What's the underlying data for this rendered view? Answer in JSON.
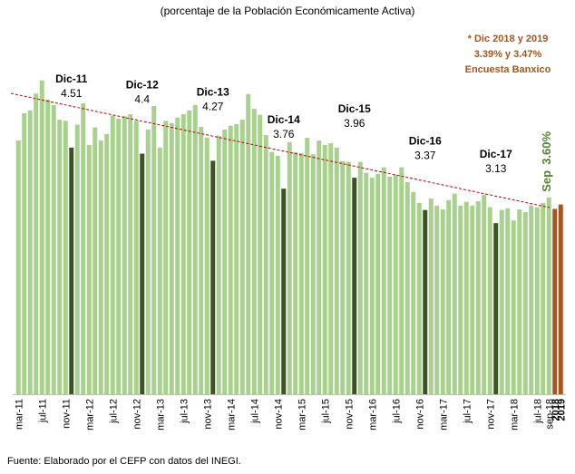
{
  "chart_data": {
    "type": "bar",
    "title": "(porcentaje de la Población Económicamente Activa)",
    "source": "Fuente: Elaborado por el CEFP con datos del INEGI.",
    "annotation": [
      "* Dic 2018 y 2019",
      "3.39% y 3.47%",
      "Encuesta Banxico"
    ],
    "categories": [
      "mar-11",
      null,
      null,
      null,
      "jul-11",
      null,
      null,
      null,
      "nov-11",
      null,
      null,
      null,
      "mar-12",
      null,
      null,
      null,
      "jul-12",
      null,
      null,
      null,
      "nov-12",
      null,
      null,
      null,
      "mar-13",
      null,
      null,
      null,
      "jul-13",
      null,
      null,
      null,
      "nov-13",
      null,
      null,
      null,
      "mar-14",
      null,
      null,
      null,
      "jul-14",
      null,
      null,
      null,
      "nov-14",
      null,
      null,
      null,
      "mar-15",
      null,
      null,
      null,
      "jul-15",
      null,
      null,
      null,
      "nov-15",
      null,
      null,
      null,
      "mar-16",
      null,
      null,
      null,
      "jul-16",
      null,
      null,
      null,
      "nov-16",
      null,
      null,
      null,
      "mar-17",
      null,
      null,
      null,
      "jul-17",
      null,
      null,
      null,
      "nov-17",
      null,
      null,
      null,
      "mar-18",
      null,
      null,
      null,
      "jul-18",
      null,
      "sep-18",
      "2018",
      "2019"
    ],
    "values": [
      4.64,
      5.14,
      5.19,
      5.5,
      5.74,
      5.39,
      5.29,
      5.02,
      5.0,
      4.51,
      4.93,
      5.32,
      4.56,
      4.88,
      4.64,
      4.76,
      5.09,
      5.04,
      5.09,
      5.12,
      5.0,
      4.4,
      4.84,
      5.27,
      4.51,
      5.0,
      4.96,
      5.06,
      5.12,
      5.19,
      5.29,
      4.89,
      4.69,
      4.27,
      4.73,
      4.84,
      4.91,
      4.94,
      5.02,
      5.49,
      5.22,
      5.11,
      4.74,
      4.43,
      4.36,
      3.76,
      4.61,
      4.43,
      4.41,
      4.69,
      4.39,
      4.64,
      4.56,
      4.59,
      4.51,
      4.26,
      4.25,
      3.96,
      4.25,
      4.05,
      3.96,
      4.03,
      4.15,
      3.98,
      4.01,
      4.15,
      3.88,
      3.7,
      3.5,
      3.37,
      3.58,
      3.45,
      3.38,
      3.55,
      3.67,
      3.45,
      3.52,
      3.45,
      3.53,
      3.65,
      3.42,
      3.13,
      3.37,
      3.4,
      3.18,
      3.38,
      3.33,
      3.45,
      3.42,
      3.5,
      3.6,
      3.39,
      3.47
    ],
    "value_labels": [
      null,
      null,
      null,
      null,
      null,
      null,
      null,
      null,
      null,
      null,
      null,
      null,
      null,
      null,
      null,
      null,
      null,
      null,
      null,
      null,
      null,
      null,
      null,
      null,
      null,
      null,
      null,
      null,
      null,
      null,
      null,
      null,
      null,
      null,
      null,
      null,
      null,
      null,
      null,
      null,
      null,
      null,
      null,
      null,
      null,
      null,
      null,
      null,
      null,
      null,
      null,
      null,
      null,
      null,
      null,
      null,
      null,
      null,
      null,
      null,
      null,
      null,
      null,
      null,
      null,
      null,
      null,
      null,
      null,
      null,
      null,
      null,
      null,
      null,
      null,
      null,
      null,
      null,
      null,
      null,
      null,
      null,
      null,
      null,
      null,
      null,
      null,
      null,
      null,
      null,
      "3.60%",
      null,
      null
    ],
    "point_labels": [
      null,
      null,
      null,
      null,
      null,
      null,
      null,
      null,
      null,
      "Dic-11",
      null,
      null,
      null,
      null,
      null,
      null,
      null,
      null,
      null,
      null,
      null,
      "Dic-12",
      null,
      null,
      null,
      null,
      null,
      null,
      null,
      null,
      null,
      null,
      null,
      "Dic-13",
      null,
      null,
      null,
      null,
      null,
      null,
      null,
      null,
      null,
      null,
      null,
      "Dic-14",
      null,
      null,
      null,
      null,
      null,
      null,
      null,
      null,
      null,
      null,
      null,
      "Dic-15",
      null,
      null,
      null,
      null,
      null,
      null,
      null,
      null,
      null,
      null,
      null,
      "Dic-16",
      null,
      null,
      null,
      null,
      null,
      null,
      null,
      null,
      null,
      null,
      null,
      "Dic-17",
      null,
      null,
      null,
      null,
      null,
      null,
      null,
      null,
      "Sep",
      null,
      null
    ],
    "color": "#a9d18e",
    "colors": [
      null,
      null,
      null,
      null,
      null,
      null,
      null,
      null,
      null,
      "#3d5229",
      null,
      null,
      null,
      null,
      null,
      null,
      null,
      null,
      null,
      null,
      null,
      "#3d5229",
      null,
      null,
      null,
      null,
      null,
      null,
      null,
      null,
      null,
      null,
      null,
      "#3d5229",
      null,
      null,
      null,
      null,
      null,
      null,
      null,
      null,
      null,
      null,
      null,
      "#3d5229",
      null,
      null,
      null,
      null,
      null,
      null,
      null,
      null,
      null,
      null,
      null,
      "#3d5229",
      null,
      null,
      null,
      null,
      null,
      null,
      null,
      null,
      null,
      null,
      null,
      "#3d5229",
      null,
      null,
      null,
      null,
      null,
      null,
      null,
      null,
      null,
      null,
      null,
      "#3d5229",
      null,
      null,
      null,
      null,
      null,
      null,
      null,
      null,
      null,
      "#a5561c",
      "#a5561c"
    ],
    "ylim": [
      0,
      6
    ]
  }
}
